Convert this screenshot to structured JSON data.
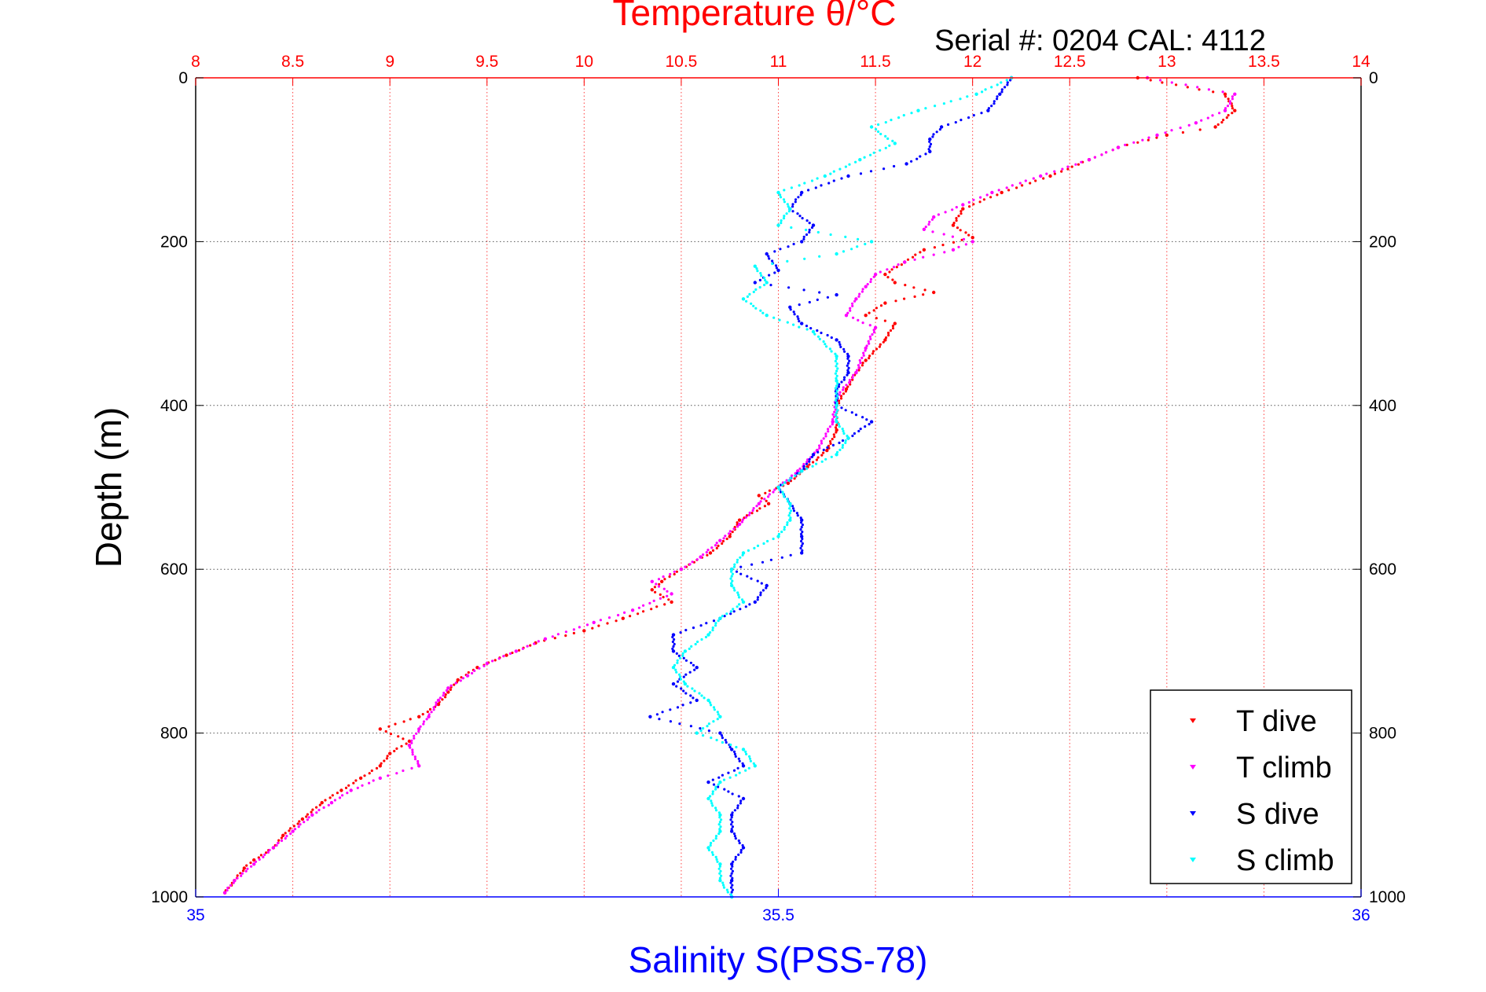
{
  "chart_data": {
    "type": "scatter",
    "title": "Temperature θ/°C",
    "subtitle": "Serial #: 0204  CAL: 4112",
    "ylabel": "Depth (m)",
    "xlabel": "Salinity S(PSS-78)",
    "y_axis": {
      "min": 0,
      "max": 1000,
      "inverted": true,
      "ticks": [
        0,
        200,
        400,
        600,
        800,
        1000
      ]
    },
    "x_top": {
      "label": "Temperature θ/°C",
      "min": 8,
      "max": 14,
      "ticks": [
        8,
        8.5,
        9,
        9.5,
        10,
        10.5,
        11,
        11.5,
        12,
        12.5,
        13,
        13.5,
        14
      ],
      "color": "#ff0000"
    },
    "x_bottom": {
      "label": "Salinity S(PSS-78)",
      "min": 35,
      "max": 36,
      "ticks": [
        35,
        35.5,
        36
      ],
      "color": "#0000ff"
    },
    "grid": true,
    "legend_position": "bottom-right",
    "series": [
      {
        "name": "T dive",
        "axis": "top",
        "color": "#ff0000",
        "points": [
          [
            12.85,
            0
          ],
          [
            13.3,
            20
          ],
          [
            13.35,
            40
          ],
          [
            13.25,
            60
          ],
          [
            13.0,
            70
          ],
          [
            12.75,
            85
          ],
          [
            12.6,
            100
          ],
          [
            12.4,
            120
          ],
          [
            12.15,
            140
          ],
          [
            11.95,
            160
          ],
          [
            11.9,
            180
          ],
          [
            12.0,
            195
          ],
          [
            11.75,
            210
          ],
          [
            11.65,
            225
          ],
          [
            11.55,
            240
          ],
          [
            11.6,
            250
          ],
          [
            11.8,
            262
          ],
          [
            11.55,
            275
          ],
          [
            11.45,
            290
          ],
          [
            11.6,
            300
          ],
          [
            11.55,
            320
          ],
          [
            11.45,
            345
          ],
          [
            11.4,
            360
          ],
          [
            11.35,
            380
          ],
          [
            11.3,
            400
          ],
          [
            11.3,
            430
          ],
          [
            11.25,
            455
          ],
          [
            11.15,
            475
          ],
          [
            11.05,
            495
          ],
          [
            10.9,
            510
          ],
          [
            10.95,
            520
          ],
          [
            10.8,
            540
          ],
          [
            10.75,
            560
          ],
          [
            10.65,
            580
          ],
          [
            10.5,
            600
          ],
          [
            10.4,
            615
          ],
          [
            10.35,
            625
          ],
          [
            10.45,
            640
          ],
          [
            10.2,
            660
          ],
          [
            10.0,
            675
          ],
          [
            9.75,
            690
          ],
          [
            9.6,
            705
          ],
          [
            9.45,
            720
          ],
          [
            9.35,
            735
          ],
          [
            9.3,
            750
          ],
          [
            9.25,
            765
          ],
          [
            9.15,
            780
          ],
          [
            8.95,
            795
          ],
          [
            9.1,
            810
          ],
          [
            9.0,
            825
          ],
          [
            8.95,
            840
          ],
          [
            8.85,
            855
          ],
          [
            8.75,
            870
          ],
          [
            8.65,
            885
          ],
          [
            8.55,
            905
          ],
          [
            8.45,
            925
          ],
          [
            8.4,
            940
          ],
          [
            8.3,
            955
          ],
          [
            8.25,
            965
          ],
          [
            8.2,
            980
          ],
          [
            8.15,
            995
          ]
        ]
      },
      {
        "name": "T climb",
        "axis": "top",
        "color": "#ff00ff",
        "points": [
          [
            12.9,
            0
          ],
          [
            13.35,
            20
          ],
          [
            13.3,
            40
          ],
          [
            13.15,
            55
          ],
          [
            12.95,
            70
          ],
          [
            12.75,
            85
          ],
          [
            12.6,
            100
          ],
          [
            12.35,
            120
          ],
          [
            12.1,
            140
          ],
          [
            11.95,
            155
          ],
          [
            11.8,
            170
          ],
          [
            11.75,
            185
          ],
          [
            12.0,
            200
          ],
          [
            11.9,
            210
          ],
          [
            11.65,
            225
          ],
          [
            11.5,
            240
          ],
          [
            11.45,
            255
          ],
          [
            11.4,
            270
          ],
          [
            11.35,
            290
          ],
          [
            11.5,
            305
          ],
          [
            11.45,
            330
          ],
          [
            11.4,
            360
          ],
          [
            11.3,
            390
          ],
          [
            11.28,
            420
          ],
          [
            11.2,
            455
          ],
          [
            11.1,
            480
          ],
          [
            11.0,
            500
          ],
          [
            10.9,
            520
          ],
          [
            10.8,
            545
          ],
          [
            10.7,
            565
          ],
          [
            10.6,
            585
          ],
          [
            10.5,
            600
          ],
          [
            10.35,
            615
          ],
          [
            10.45,
            630
          ],
          [
            10.25,
            650
          ],
          [
            10.05,
            665
          ],
          [
            9.8,
            685
          ],
          [
            9.65,
            700
          ],
          [
            9.5,
            715
          ],
          [
            9.4,
            730
          ],
          [
            9.3,
            745
          ],
          [
            9.25,
            760
          ],
          [
            9.2,
            780
          ],
          [
            9.15,
            795
          ],
          [
            9.1,
            815
          ],
          [
            9.15,
            840
          ],
          [
            8.95,
            855
          ],
          [
            8.8,
            870
          ],
          [
            8.7,
            885
          ],
          [
            8.6,
            900
          ],
          [
            8.5,
            920
          ],
          [
            8.4,
            940
          ],
          [
            8.3,
            960
          ],
          [
            8.2,
            980
          ],
          [
            8.15,
            995
          ]
        ]
      },
      {
        "name": "S dive",
        "axis": "bottom",
        "color": "#0000ff",
        "points": [
          [
            35.7,
            0
          ],
          [
            35.69,
            20
          ],
          [
            35.68,
            40
          ],
          [
            35.64,
            60
          ],
          [
            35.63,
            75
          ],
          [
            35.63,
            90
          ],
          [
            35.61,
            105
          ],
          [
            35.56,
            120
          ],
          [
            35.52,
            140
          ],
          [
            35.51,
            160
          ],
          [
            35.53,
            180
          ],
          [
            35.52,
            200
          ],
          [
            35.49,
            215
          ],
          [
            35.5,
            235
          ],
          [
            35.48,
            250
          ],
          [
            35.55,
            265
          ],
          [
            35.51,
            280
          ],
          [
            35.52,
            300
          ],
          [
            35.55,
            320
          ],
          [
            35.56,
            340
          ],
          [
            35.56,
            360
          ],
          [
            35.55,
            380
          ],
          [
            35.55,
            400
          ],
          [
            35.58,
            420
          ],
          [
            35.56,
            440
          ],
          [
            35.53,
            460
          ],
          [
            35.52,
            480
          ],
          [
            35.5,
            500
          ],
          [
            35.51,
            520
          ],
          [
            35.52,
            540
          ],
          [
            35.52,
            560
          ],
          [
            35.52,
            580
          ],
          [
            35.46,
            600
          ],
          [
            35.49,
            620
          ],
          [
            35.48,
            640
          ],
          [
            35.45,
            660
          ],
          [
            35.41,
            680
          ],
          [
            35.41,
            700
          ],
          [
            35.43,
            720
          ],
          [
            35.41,
            740
          ],
          [
            35.43,
            760
          ],
          [
            35.39,
            780
          ],
          [
            35.45,
            800
          ],
          [
            35.46,
            820
          ],
          [
            35.47,
            840
          ],
          [
            35.44,
            860
          ],
          [
            35.47,
            880
          ],
          [
            35.46,
            900
          ],
          [
            35.46,
            920
          ],
          [
            35.47,
            940
          ],
          [
            35.46,
            960
          ],
          [
            35.46,
            980
          ],
          [
            35.46,
            1000
          ]
        ]
      },
      {
        "name": "S climb",
        "axis": "bottom",
        "color": "#00ffff",
        "points": [
          [
            35.7,
            0
          ],
          [
            35.67,
            20
          ],
          [
            35.62,
            40
          ],
          [
            35.58,
            60
          ],
          [
            35.6,
            80
          ],
          [
            35.57,
            100
          ],
          [
            35.54,
            120
          ],
          [
            35.5,
            140
          ],
          [
            35.51,
            160
          ],
          [
            35.5,
            180
          ],
          [
            35.58,
            200
          ],
          [
            35.55,
            215
          ],
          [
            35.48,
            230
          ],
          [
            35.49,
            250
          ],
          [
            35.47,
            270
          ],
          [
            35.49,
            290
          ],
          [
            35.53,
            310
          ],
          [
            35.55,
            340
          ],
          [
            35.55,
            370
          ],
          [
            35.55,
            400
          ],
          [
            35.55,
            420
          ],
          [
            35.56,
            440
          ],
          [
            35.55,
            460
          ],
          [
            35.52,
            480
          ],
          [
            35.5,
            500
          ],
          [
            35.51,
            520
          ],
          [
            35.51,
            540
          ],
          [
            35.5,
            560
          ],
          [
            35.47,
            580
          ],
          [
            35.46,
            600
          ],
          [
            35.46,
            620
          ],
          [
            35.47,
            640
          ],
          [
            35.45,
            660
          ],
          [
            35.44,
            680
          ],
          [
            35.42,
            700
          ],
          [
            35.41,
            720
          ],
          [
            35.42,
            740
          ],
          [
            35.44,
            760
          ],
          [
            35.45,
            780
          ],
          [
            35.43,
            800
          ],
          [
            35.47,
            820
          ],
          [
            35.48,
            840
          ],
          [
            35.45,
            860
          ],
          [
            35.44,
            880
          ],
          [
            35.45,
            900
          ],
          [
            35.45,
            920
          ],
          [
            35.44,
            940
          ],
          [
            35.45,
            960
          ],
          [
            35.45,
            980
          ],
          [
            35.46,
            1000
          ]
        ]
      }
    ]
  }
}
